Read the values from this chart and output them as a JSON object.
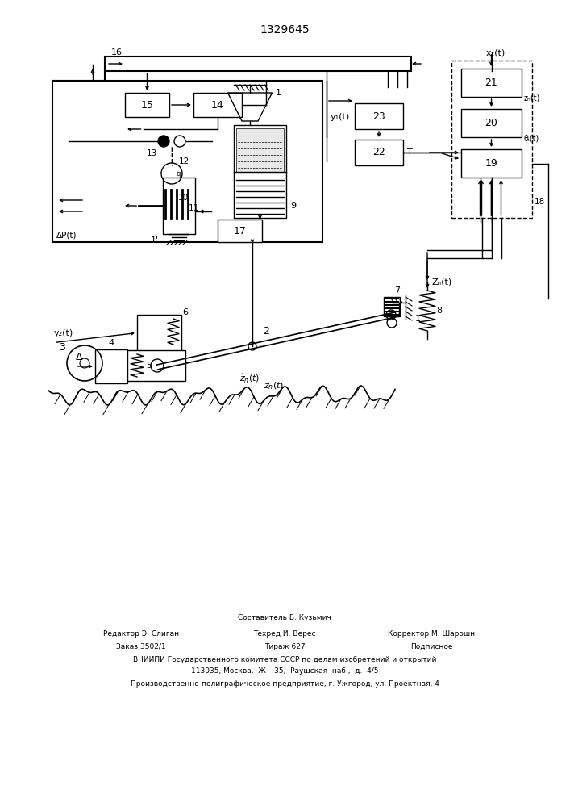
{
  "title": "1329645",
  "bg_color": "#ffffff",
  "line_color": "#000000",
  "footer": {
    "col1": [
      "Редактор Э. Слиган",
      "Заказ 3502/1"
    ],
    "col2": [
      "Составитель Б. Кузьмич",
      "Техред И. Верес",
      "Тираж 627"
    ],
    "col3": [
      "Корректор М. Шарошн",
      "Подписное"
    ],
    "row3": "ВНИИПИ Государственного комитета СССР по делам изобретений и открытий",
    "row4": "113035, Москва,  Ж – 35,  Раушская  наб.,  д.  4/5",
    "row5": "Производственно-полиграфическое предприятие, г. Ужгород, ул. Проектная, 4"
  }
}
